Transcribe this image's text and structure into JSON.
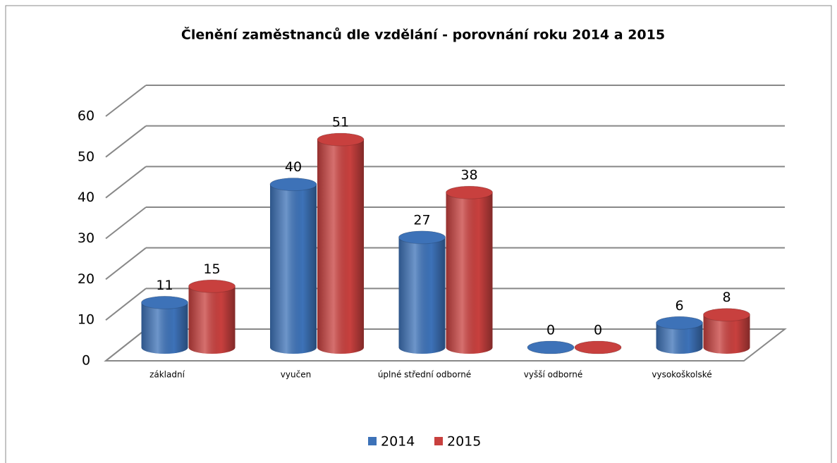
{
  "chart_data": {
    "type": "bar3d",
    "title": "Členění zaměstnanců dle vzdělání - porovnání roku 2014 a 2015",
    "categories": [
      "základní",
      "vyučen",
      "úplné střední odborné",
      "vyšší odborné",
      "vysokoškolské"
    ],
    "series": [
      {
        "name": "2014",
        "color": "#3d72b8",
        "values": [
          11,
          40,
          27,
          0,
          6
        ]
      },
      {
        "name": "2015",
        "color": "#c8403e",
        "values": [
          15,
          51,
          38,
          0,
          8
        ]
      }
    ],
    "ylim": [
      0,
      60
    ],
    "yticks": [
      0,
      10,
      20,
      30,
      40,
      50,
      60
    ],
    "grid": true,
    "legend": "bottom"
  }
}
